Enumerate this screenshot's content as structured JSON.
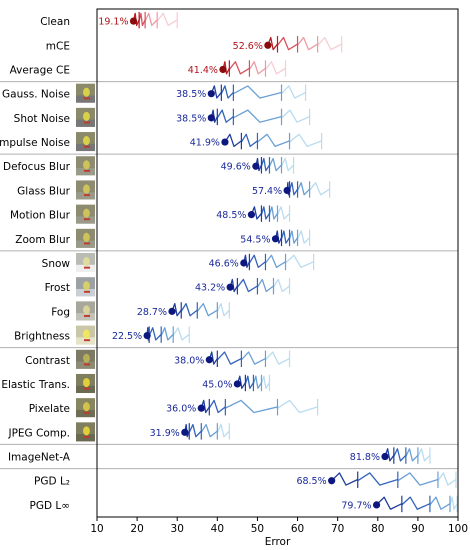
{
  "chart_data": {
    "type": "scatter",
    "xlabel": "Error",
    "xlim": [
      10,
      100
    ],
    "xticks": [
      10,
      20,
      30,
      40,
      50,
      60,
      70,
      80,
      90,
      100
    ],
    "rows": [
      {
        "label": "Clean",
        "value": 19.1,
        "value_label": "19.1%",
        "group": "summary",
        "thumb": null
      },
      {
        "label": "mCE",
        "value": 52.6,
        "value_label": "52.6%",
        "group": "summary",
        "thumb": null
      },
      {
        "label": "Average CE",
        "value": 41.4,
        "value_label": "41.4%",
        "group": "summary",
        "thumb": null
      },
      {
        "label": "Gauss. Noise",
        "value": 38.5,
        "value_label": "38.5%",
        "group": "noise",
        "thumb": "noise"
      },
      {
        "label": "Shot Noise",
        "value": 38.5,
        "value_label": "38.5%",
        "group": "noise",
        "thumb": "noise"
      },
      {
        "label": "Impulse Noise",
        "value": 41.9,
        "value_label": "41.9%",
        "group": "noise",
        "thumb": "noise"
      },
      {
        "label": "Defocus Blur",
        "value": 49.6,
        "value_label": "49.6%",
        "group": "blur",
        "thumb": "blur"
      },
      {
        "label": "Glass Blur",
        "value": 57.4,
        "value_label": "57.4%",
        "group": "blur",
        "thumb": "blur"
      },
      {
        "label": "Motion Blur",
        "value": 48.5,
        "value_label": "48.5%",
        "group": "blur",
        "thumb": "blur"
      },
      {
        "label": "Zoom Blur",
        "value": 54.5,
        "value_label": "54.5%",
        "group": "blur",
        "thumb": "blur"
      },
      {
        "label": "Snow",
        "value": 46.6,
        "value_label": "46.6%",
        "group": "weather",
        "thumb": "snow"
      },
      {
        "label": "Frost",
        "value": 43.2,
        "value_label": "43.2%",
        "group": "weather",
        "thumb": "frost"
      },
      {
        "label": "Fog",
        "value": 28.7,
        "value_label": "28.7%",
        "group": "weather",
        "thumb": "fog"
      },
      {
        "label": "Brightness",
        "value": 22.5,
        "value_label": "22.5%",
        "group": "weather",
        "thumb": "bright"
      },
      {
        "label": "Contrast",
        "value": 38.0,
        "value_label": "38.0%",
        "group": "digital",
        "thumb": "contrast"
      },
      {
        "label": "Elastic Trans.",
        "value": 45.0,
        "value_label": "45.0%",
        "group": "digital",
        "thumb": "normal"
      },
      {
        "label": "Pixelate",
        "value": 36.0,
        "value_label": "36.0%",
        "group": "digital",
        "thumb": "pixel"
      },
      {
        "label": "JPEG Comp.",
        "value": 31.9,
        "value_label": "31.9%",
        "group": "digital",
        "thumb": "normal"
      },
      {
        "label": "ImageNet-A",
        "value": 81.8,
        "value_label": "81.8%",
        "group": "natural",
        "thumb": null
      },
      {
        "label": "PGD L₂",
        "value": 68.5,
        "value_label": "68.5%",
        "group": "adv",
        "thumb": null
      },
      {
        "label": "PGD L∞",
        "value": 79.7,
        "value_label": "79.7%",
        "group": "adv",
        "thumb": null
      }
    ],
    "trails": [
      [
        19.1,
        20.5,
        22,
        25,
        30
      ],
      [
        52.6,
        55,
        60,
        65,
        71
      ],
      [
        41.4,
        43,
        48,
        52,
        57
      ],
      [
        38.5,
        41,
        44,
        56,
        62
      ],
      [
        38.5,
        40,
        44,
        56,
        63
      ],
      [
        41.9,
        46,
        50,
        58,
        66
      ],
      [
        49.6,
        51,
        53,
        56,
        59
      ],
      [
        57.4,
        58,
        60,
        63,
        68
      ],
      [
        48.5,
        51,
        53,
        55,
        58
      ],
      [
        54.5,
        56,
        58,
        60,
        63
      ],
      [
        46.6,
        48,
        52,
        57,
        64
      ],
      [
        43.2,
        45,
        50,
        54,
        58
      ],
      [
        28.7,
        31,
        35,
        40,
        43
      ],
      [
        22.5,
        23,
        26,
        29,
        33
      ],
      [
        38.0,
        40,
        46,
        52,
        58
      ],
      [
        45.0,
        47,
        49,
        51,
        53
      ],
      [
        36.0,
        38,
        42,
        55,
        65
      ],
      [
        31.9,
        33,
        36,
        40,
        43
      ],
      [
        81.8,
        84,
        87,
        90,
        93
      ],
      [
        68.5,
        75,
        85,
        95,
        99.5
      ],
      [
        79.7,
        86,
        93,
        98,
        99.8
      ]
    ],
    "separators_after": [
      2,
      5,
      9,
      13,
      17,
      18
    ],
    "colors": {
      "summary": [
        "#8b0a0a",
        "#b51b24",
        "#d8505a",
        "#ef9aa3",
        "#f7cdd2"
      ],
      "robust": [
        "#0d1780",
        "#1f3d9c",
        "#3264bb",
        "#6aa0d6",
        "#b9dcef"
      ],
      "summary_label": "#b0141c",
      "robust_label": "#1a2a9a"
    }
  }
}
